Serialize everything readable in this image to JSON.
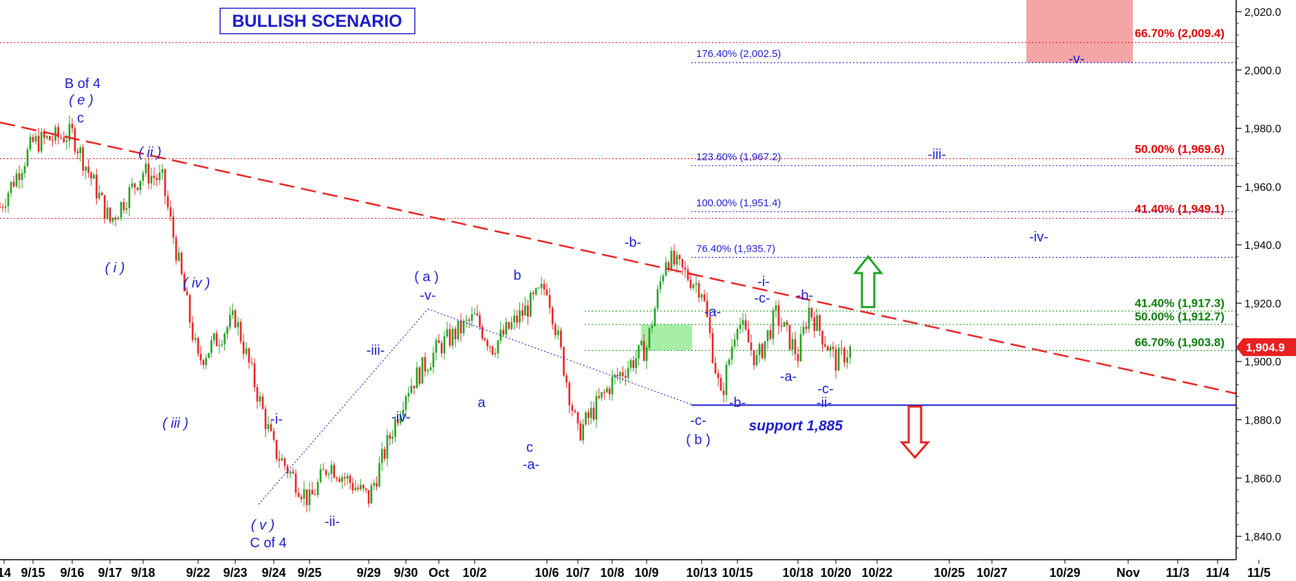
{
  "chart_data": {
    "type": "line",
    "title": "BULLISH SCENARIO",
    "xlabel": "",
    "ylabel": "",
    "ylim": [
      1832,
      2024
    ],
    "y_ticks": [
      "1,840.0",
      "1,860.0",
      "1,880.0",
      "1,900.0",
      "1,920.0",
      "1,940.0",
      "1,960.0",
      "1,980.0",
      "2,000.0",
      "2,020.0"
    ],
    "y_tick_values": [
      1840,
      1860,
      1880,
      1900,
      1920,
      1940,
      1960,
      1980,
      2000,
      2020
    ],
    "x_ticks": [
      "14",
      "9/15",
      "9/16",
      "9/17",
      "9/18",
      "9/22",
      "9/23",
      "9/24",
      "9/25",
      "9/29",
      "9/30",
      "Oct",
      "10/2",
      "10/6",
      "10/7",
      "10/8",
      "10/9",
      "10/13",
      "10/15",
      "10/18",
      "10/20",
      "10/22",
      "10/25",
      "10/27",
      "10/29",
      "Nov",
      "11/3",
      "11/4",
      "11/5"
    ],
    "last_price": "1,904.9",
    "price_series": [
      [
        "9/14",
        1953
      ],
      [
        "9/15",
        1975
      ],
      [
        "9/16",
        1978
      ],
      [
        "9/17",
        1948
      ],
      [
        "9/18",
        1965
      ],
      [
        "9/19",
        1962
      ],
      [
        "9/22",
        1900
      ],
      [
        "9/23",
        1915
      ],
      [
        "9/24",
        1870
      ],
      [
        "9/25",
        1852
      ],
      [
        "9/26",
        1865
      ],
      [
        "9/29",
        1853
      ],
      [
        "9/30",
        1890
      ],
      [
        "Oct",
        1905
      ],
      [
        "10/2",
        1915
      ],
      [
        "10/3",
        1905
      ],
      [
        "10/6",
        1926
      ],
      [
        "10/7",
        1875
      ],
      [
        "10/8",
        1893
      ],
      [
        "10/9",
        1905
      ],
      [
        "10/10",
        1936
      ],
      [
        "10/13",
        1925
      ],
      [
        "10/14",
        1887
      ],
      [
        "10/15",
        1915
      ],
      [
        "10/16",
        1900
      ],
      [
        "10/17",
        1916
      ],
      [
        "10/18",
        1902
      ],
      [
        "10/19",
        1918
      ],
      [
        "10/20",
        1900
      ],
      [
        "10/21",
        1904.9
      ]
    ],
    "resistance_trendline": {
      "label": "",
      "from": [
        "9/12",
        1982
      ],
      "to": [
        "11/6",
        1889
      ],
      "color": "#e82020"
    },
    "support": {
      "label": "support 1,885",
      "value": 1885,
      "color": "#1a1acc"
    },
    "fib_levels_red": [
      {
        "label": "66.70% (2,009.4)",
        "value": 2009.4
      },
      {
        "label": "50.00% (1,969.6)",
        "value": 1969.6
      },
      {
        "label": "41.40% (1,949.1)",
        "value": 1949.1
      }
    ],
    "fib_levels_blue": [
      {
        "label": "176.40% (2,002.5)",
        "value": 2002.5
      },
      {
        "label": "123.60% (1,967.2)",
        "value": 1967.2
      },
      {
        "label": "100.00% (1,951.4)",
        "value": 1951.4
      },
      {
        "label": "76.40% (1,935.7)",
        "value": 1935.7
      }
    ],
    "fib_levels_green": [
      {
        "label": "41.40% (1,917.3)",
        "value": 1917.3
      },
      {
        "label": "50.00% (1,912.7)",
        "value": 1912.7
      },
      {
        "label": "66.70% (1,903.8)",
        "value": 1903.8
      }
    ],
    "zones": [
      {
        "label": "target zone",
        "color": "#f4a6a6",
        "y_range": [
          2002.5,
          2024
        ]
      },
      {
        "label": "support zone",
        "color": "#a8eea8",
        "y_range": [
          1903.8,
          1912.7
        ]
      }
    ],
    "arrows": [
      {
        "direction": "up",
        "color": "#1fa01f"
      },
      {
        "direction": "down",
        "color": "#e82020"
      }
    ],
    "wave_labels": [
      "B of 4",
      "( e )",
      "c",
      "( ii )",
      "( i )",
      "( iv )",
      "( iii )",
      "( v )",
      "C of 4",
      "-i-",
      "-ii-",
      "-iii-",
      "-iv-",
      "( a )",
      "-v-",
      "b",
      "a",
      "c",
      "-a-",
      "-b-",
      "-c-",
      "( b )",
      "-a-",
      "-b-",
      "-i-",
      "-c-",
      "-b-",
      "-a-",
      "-c-",
      "-ii-",
      "-iii-",
      "-iv-",
      "-v-"
    ]
  }
}
